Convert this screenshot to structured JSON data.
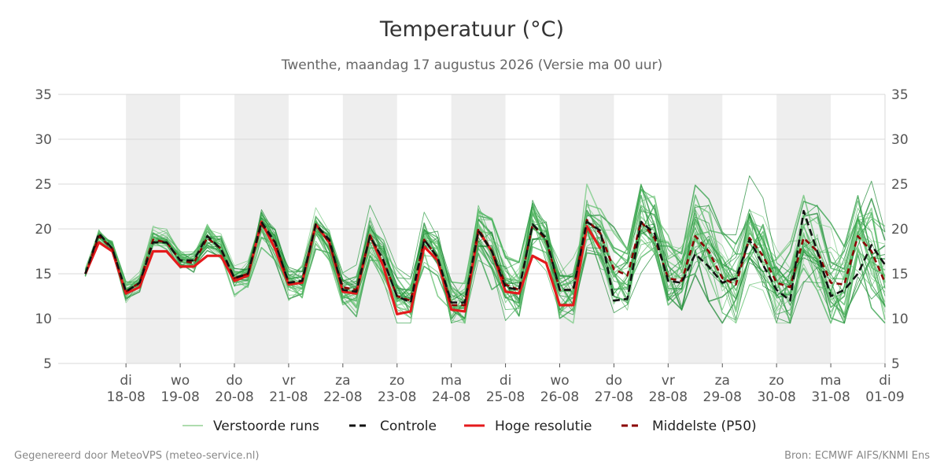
{
  "chart_data": {
    "type": "line",
    "title": "Temperatuur (°C)",
    "subtitle": "Twenthe, maandag 17 augustus 2026 (Versie ma 00 uur)",
    "ylim": [
      5,
      35
    ],
    "yticks": [
      5,
      10,
      15,
      20,
      25,
      30,
      35
    ],
    "grid": true,
    "legend_position": "bottom",
    "x_start": "2026-08-17T06:00",
    "x_step_hours": 6,
    "x_end": "2026-09-01T00:00",
    "x_ticks": [
      {
        "day": "di",
        "date": "18-08"
      },
      {
        "day": "wo",
        "date": "19-08"
      },
      {
        "day": "do",
        "date": "20-08"
      },
      {
        "day": "vr",
        "date": "21-08"
      },
      {
        "day": "za",
        "date": "22-08"
      },
      {
        "day": "zo",
        "date": "23-08"
      },
      {
        "day": "ma",
        "date": "24-08"
      },
      {
        "day": "di",
        "date": "25-08"
      },
      {
        "day": "wo",
        "date": "26-08"
      },
      {
        "day": "do",
        "date": "27-08"
      },
      {
        "day": "vr",
        "date": "28-08"
      },
      {
        "day": "za",
        "date": "29-08"
      },
      {
        "day": "zo",
        "date": "30-08"
      },
      {
        "day": "ma",
        "date": "31-08"
      },
      {
        "day": "di",
        "date": "01-09"
      }
    ],
    "shaded_days": [
      "18-08",
      "20-08",
      "22-08",
      "24-08",
      "26-08",
      "28-08",
      "30-08"
    ],
    "series": [
      {
        "name": "Controle",
        "color": "#111111",
        "style": "dashed",
        "values": [
          15.0,
          19.5,
          17.8,
          13.0,
          14.0,
          18.5,
          18.5,
          16.5,
          16.5,
          19.2,
          17.8,
          14.5,
          15.0,
          20.8,
          18.5,
          14.0,
          14.2,
          20.5,
          18.8,
          13.2,
          13.0,
          19.2,
          16.5,
          12.5,
          11.8,
          18.8,
          16.8,
          11.8,
          11.8,
          19.8,
          17.5,
          13.5,
          13.2,
          20.5,
          19.0,
          13.2,
          13.2,
          20.8,
          19.8,
          12.0,
          12.2,
          20.8,
          19.5,
          14.2,
          14.0,
          17.2,
          15.8,
          14.0,
          14.5,
          18.8,
          16.0,
          13.2,
          12.0,
          22.0,
          17.5,
          12.5,
          13.2,
          15.0,
          18.2,
          16.0
        ]
      },
      {
        "name": "Hoge resolutie",
        "color": "#e41a1c",
        "style": "solid",
        "values": [
          15.0,
          18.5,
          17.5,
          12.8,
          13.5,
          17.5,
          17.5,
          15.8,
          15.8,
          17.0,
          17.0,
          14.2,
          14.8,
          20.8,
          17.8,
          13.8,
          14.0,
          20.5,
          18.5,
          13.0,
          12.8,
          19.3,
          15.8,
          10.5,
          10.8,
          18.0,
          16.5,
          11.0,
          10.8,
          19.8,
          17.5,
          13.0,
          12.8,
          17.0,
          16.2,
          11.5,
          11.5,
          20.3,
          17.8,
          null,
          null,
          null,
          null,
          null,
          null,
          null,
          null,
          null,
          null,
          null,
          null,
          null,
          null,
          null,
          null,
          null,
          null,
          null,
          null,
          null
        ]
      },
      {
        "name": "Middelste (P50)",
        "color": "#8b0000",
        "style": "dashed",
        "values": [
          15.0,
          19.2,
          17.8,
          13.0,
          14.0,
          18.8,
          18.5,
          16.5,
          16.2,
          19.0,
          17.8,
          14.5,
          15.0,
          20.5,
          18.5,
          14.0,
          14.2,
          20.5,
          18.5,
          13.5,
          13.2,
          19.2,
          16.5,
          12.5,
          12.0,
          18.8,
          16.8,
          11.5,
          11.5,
          20.0,
          17.5,
          13.8,
          13.2,
          20.5,
          18.8,
          13.2,
          13.2,
          21.0,
          19.5,
          15.5,
          14.8,
          20.8,
          19.0,
          14.5,
          14.2,
          19.2,
          17.5,
          14.5,
          13.8,
          19.0,
          17.0,
          14.0,
          13.5,
          19.0,
          17.5,
          14.0,
          13.8,
          19.2,
          17.5,
          14.0
        ]
      }
    ]
  },
  "legend": {
    "items": [
      {
        "label": "Verstoorde runs",
        "color": "#5cb85c",
        "style": "thin"
      },
      {
        "label": "Controle",
        "color": "#111111",
        "style": "dashed"
      },
      {
        "label": "Hoge resolutie",
        "color": "#e41a1c",
        "style": "solid"
      },
      {
        "label": "Middelste (P50)",
        "color": "#8b0000",
        "style": "dashed"
      }
    ]
  },
  "footer": {
    "left": "Gegenereerd door MeteoVPS (meteo-service.nl)",
    "right": "Bron: ECMWF AIFS/KNMI Ens"
  }
}
